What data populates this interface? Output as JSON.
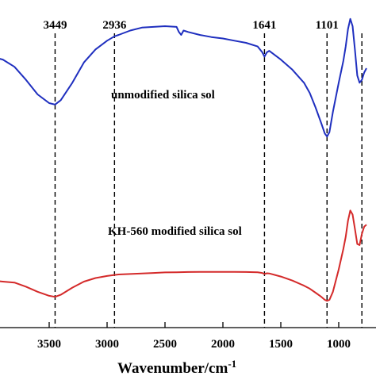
{
  "chart_data": {
    "type": "line",
    "title": "",
    "xlabel": "Wavenumber/cm",
    "xlabel_superscript": "-1",
    "ylabel": "",
    "x_reversed": true,
    "xlim": [
      4000,
      750
    ],
    "x_ticks": [
      3500,
      3000,
      2500,
      2000,
      1500,
      1000
    ],
    "y_ticks_visible": false,
    "grid": false,
    "peaks": [
      {
        "label": "3449",
        "x": 3449
      },
      {
        "label": "2936",
        "x": 2936
      },
      {
        "label": "1641",
        "x": 1641
      },
      {
        "label": "1101",
        "x": 1101
      },
      {
        "label": "",
        "x": 800
      }
    ],
    "series": [
      {
        "name": "unmodified silica sol",
        "color": "#1f2fbf",
        "x": [
          4000,
          3900,
          3800,
          3700,
          3600,
          3500,
          3449,
          3400,
          3300,
          3200,
          3100,
          3000,
          2936,
          2900,
          2800,
          2700,
          2600,
          2500,
          2400,
          2380,
          2360,
          2340,
          2300,
          2200,
          2100,
          2000,
          1900,
          1800,
          1700,
          1660,
          1641,
          1620,
          1600,
          1500,
          1400,
          1300,
          1250,
          1200,
          1150,
          1120,
          1101,
          1080,
          1050,
          1000,
          960,
          940,
          920,
          900,
          880,
          860,
          840,
          820,
          800,
          780,
          760
        ],
        "values": [
          0.73,
          0.71,
          0.66,
          0.57,
          0.47,
          0.41,
          0.4,
          0.43,
          0.55,
          0.69,
          0.78,
          0.84,
          0.87,
          0.88,
          0.91,
          0.93,
          0.935,
          0.94,
          0.935,
          0.9,
          0.88,
          0.91,
          0.9,
          0.88,
          0.865,
          0.855,
          0.84,
          0.825,
          0.8,
          0.76,
          0.73,
          0.76,
          0.77,
          0.71,
          0.64,
          0.55,
          0.48,
          0.38,
          0.27,
          0.2,
          0.18,
          0.21,
          0.35,
          0.55,
          0.7,
          0.8,
          0.92,
          0.99,
          0.94,
          0.78,
          0.6,
          0.55,
          0.57,
          0.62,
          0.65
        ]
      },
      {
        "name": "KH-560 modified silica sol",
        "color": "#d42a2a",
        "x": [
          4000,
          3900,
          3800,
          3700,
          3600,
          3500,
          3449,
          3400,
          3300,
          3200,
          3100,
          3000,
          2936,
          2900,
          2800,
          2700,
          2600,
          2500,
          2400,
          2300,
          2200,
          2100,
          2000,
          1900,
          1800,
          1700,
          1660,
          1641,
          1620,
          1600,
          1500,
          1400,
          1300,
          1250,
          1200,
          1150,
          1120,
          1101,
          1080,
          1050,
          1000,
          960,
          940,
          920,
          900,
          880,
          860,
          840,
          820,
          800,
          780,
          760
        ],
        "values": [
          0.19,
          0.18,
          0.17,
          0.13,
          0.08,
          0.04,
          0.03,
          0.05,
          0.12,
          0.18,
          0.215,
          0.235,
          0.245,
          0.25,
          0.255,
          0.26,
          0.265,
          0.27,
          0.272,
          0.274,
          0.275,
          0.276,
          0.276,
          0.275,
          0.274,
          0.272,
          0.265,
          0.255,
          0.262,
          0.26,
          0.23,
          0.19,
          0.14,
          0.11,
          0.07,
          0.03,
          0.0,
          -0.01,
          0.0,
          0.08,
          0.3,
          0.5,
          0.62,
          0.78,
          0.88,
          0.84,
          0.7,
          0.55,
          0.54,
          0.65,
          0.72,
          0.74
        ]
      }
    ]
  },
  "labels": {
    "series_1": "unmodified silica sol",
    "series_2": "KH-560 modified silica sol"
  }
}
